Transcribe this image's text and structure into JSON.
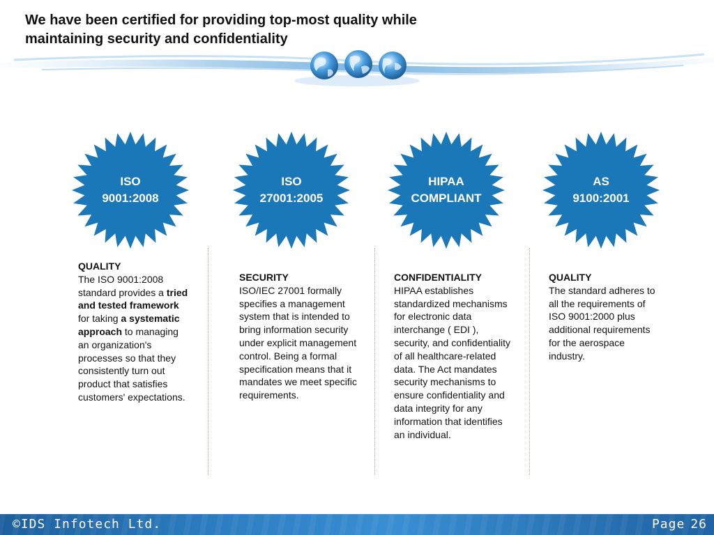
{
  "header": {
    "title_line1": "We have been certified for providing top-most quality while",
    "title_line2": "maintaining security and confidentiality"
  },
  "colors": {
    "badge_blue": "#1a78b8",
    "banner_blue": "#7fb7e0",
    "footer_blue": "#2c7cc1",
    "divider": "#b8a878"
  },
  "badges": [
    {
      "line1": "ISO",
      "line2": "9001:2008"
    },
    {
      "line1": "ISO",
      "line2": "27001:2005"
    },
    {
      "line1": "HIPAA",
      "line2": "COMPLIANT"
    },
    {
      "line1": "AS",
      "line2": "9100:2001"
    }
  ],
  "columns": [
    {
      "heading": "QUALITY",
      "t1": "The ISO 9001:2008 standard provides a ",
      "b1": "tried and tested framework",
      "t2": " for taking ",
      "b2": "a systematic approach",
      "t3": " to managing an organization's processes so that they consistently turn out product that satisfies customers' expectations."
    },
    {
      "heading": "SECURITY",
      "body": "ISO/IEC 27001 formally specifies a management system that is intended to bring information security under explicit management control. Being a formal specification means that it mandates we meet specific requirements."
    },
    {
      "heading": "CONFIDENTIALITY",
      "body": "HIPAA establishes standardized mechanisms for electronic data interchange ( EDI ), security, and confidentiality of all healthcare-related data. The Act mandates security mechanisms to ensure confidentiality and data integrity for any information that identifies an individual."
    },
    {
      "heading": "QUALITY",
      "body": "The standard adheres to all the requirements of ISO 9001:2000 plus additional requirements for the aerospace industry."
    }
  ],
  "footer": {
    "company": "©IDS Infotech Ltd.",
    "page_label": "Page",
    "page_number": "26"
  },
  "icons": [
    "globe-icon",
    "globe-icon",
    "globe-icon",
    "starburst-badge"
  ]
}
